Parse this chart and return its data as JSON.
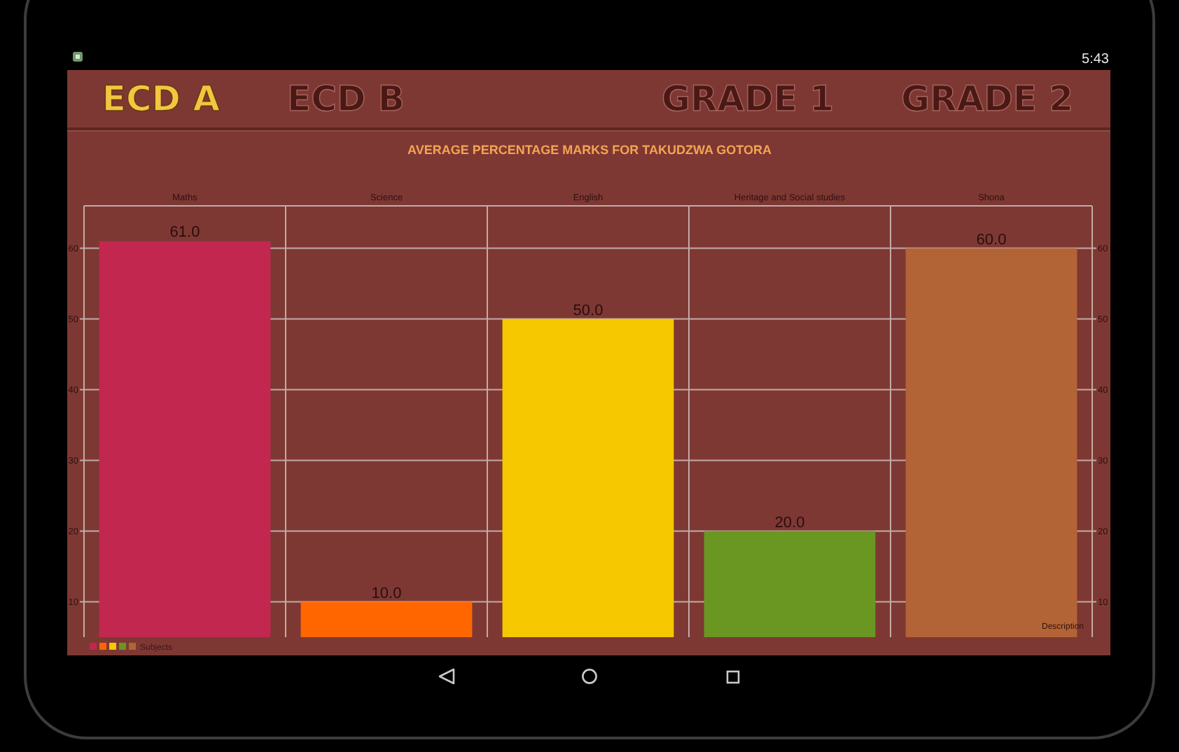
{
  "chart_data": {
    "type": "bar",
    "title": "AVERAGE PERCENTAGE MARKS FOR TAKUDZWA GOTORA",
    "categories": [
      "Maths",
      "Science",
      "English",
      "Heritage and Social studies",
      "Shona"
    ],
    "series": [
      {
        "name": "Subjects",
        "colors": [
          "#c2274f",
          "#ff6600",
          "#f5c800",
          "#6a9622",
          "#b36436"
        ],
        "values": [
          61,
          10,
          50,
          20,
          60
        ],
        "value_labels": [
          "61.0",
          "10.0",
          "50.0",
          "20.0",
          "60.0"
        ]
      }
    ],
    "ylim": [
      5,
      66
    ],
    "yticks": [
      10,
      20,
      30,
      40,
      50,
      60
    ],
    "y2lim": [
      5,
      66
    ],
    "y2ticks": [
      10,
      20,
      30,
      40,
      50,
      60
    ],
    "grid": true,
    "legend": "bottom left",
    "annotations": [
      "5:43",
      "ECD A",
      "ECD B",
      "GRADE 1",
      "GRADE 2",
      "Description"
    ]
  }
}
